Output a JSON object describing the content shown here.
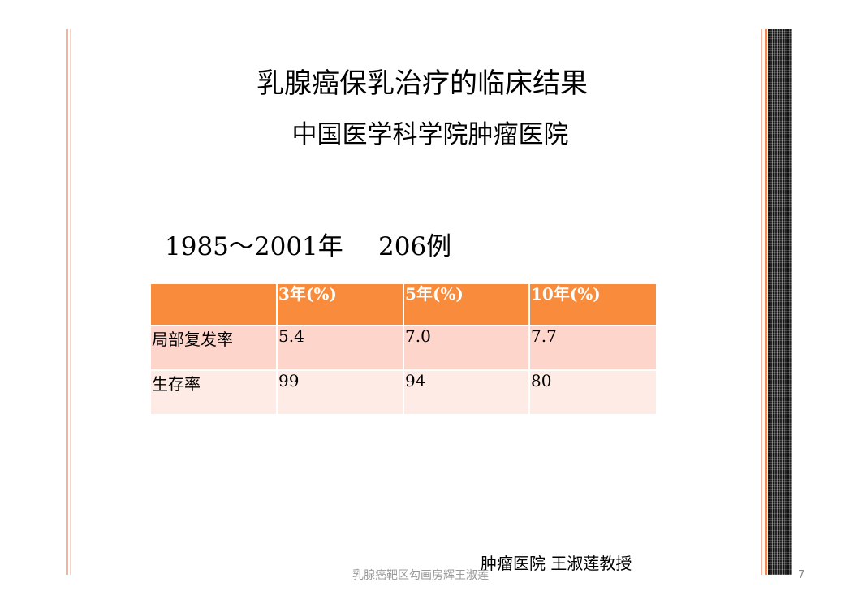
{
  "slide": {
    "title": "乳腺癌保乳治疗的临床结果",
    "subtitle": "中国医学科学院肿瘤医院",
    "period": "1985～2001年",
    "count": "206例",
    "author": "肿瘤医院 王淑莲教授",
    "footer": "乳腺癌靶区勾画房辉王淑莲",
    "page_number": "7"
  },
  "table": {
    "headers": [
      "",
      "3年(%)",
      "5年(%)",
      "10年(%)"
    ],
    "rows": [
      {
        "label": "局部复发率",
        "values": [
          "5.4",
          "7.0",
          "7.7"
        ]
      },
      {
        "label": "生存率",
        "values": [
          "99",
          "94",
          "80"
        ]
      }
    ]
  },
  "colors": {
    "header_bg": "#f98c3c",
    "row_odd_bg": "#fdd5cb",
    "row_even_bg": "#feebe5",
    "accent_bar": "#f08a5a"
  }
}
